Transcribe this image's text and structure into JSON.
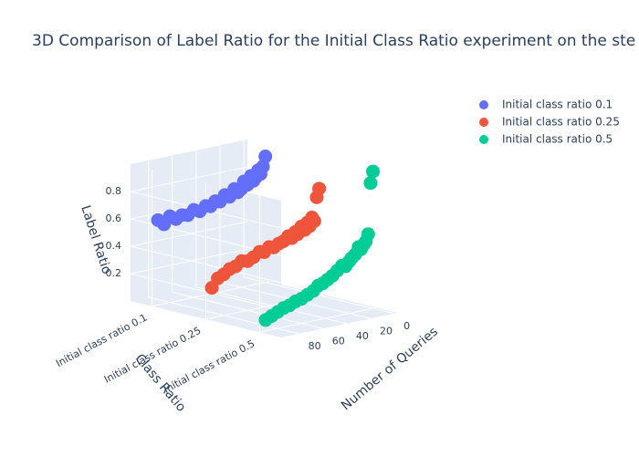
{
  "chart_data": {
    "type": "scatter3d",
    "title": "3D Comparison of Label Ratio for the Initial Class Ratio experiment on the ste",
    "xaxis_title": "Number of Queries",
    "yaxis_title": "Class Ratio",
    "zaxis_title": "Label Ratio",
    "categories": [
      "Initial class ratio 0.1",
      "Initial class ratio 0.25",
      "Initial class ratio 0.5"
    ],
    "xlim": [
      -3,
      95
    ],
    "xticks": [
      0,
      20,
      40,
      60,
      80
    ],
    "zlim": [
      0,
      1
    ],
    "zticks": [
      0.2,
      0.4,
      0.6,
      0.8
    ],
    "grid": true,
    "legend": "top-right",
    "series": [
      {
        "name": "Initial class ratio 0.1",
        "color": "#636efa",
        "y": [
          "Initial class ratio 0.1",
          "Initial class ratio 0.1",
          "Initial class ratio 0.1",
          "Initial class ratio 0.1",
          "Initial class ratio 0.1",
          "Initial class ratio 0.1",
          "Initial class ratio 0.1",
          "Initial class ratio 0.1",
          "Initial class ratio 0.1",
          "Initial class ratio 0.1",
          "Initial class ratio 0.1",
          "Initial class ratio 0.1",
          "Initial class ratio 0.1",
          "Initial class ratio 0.1",
          "Initial class ratio 0.1",
          "Initial class ratio 0.1",
          "Initial class ratio 0.1",
          "Initial class ratio 0.1",
          "Initial class ratio 0.1",
          "Initial class ratio 0.1",
          "Initial class ratio 0.1",
          "Initial class ratio 0.1",
          "Initial class ratio 0.1",
          "Initial class ratio 0.1",
          "Initial class ratio 0.1",
          "Initial class ratio 0.1"
        ],
        "x": [
          0,
          2,
          4,
          6,
          8,
          10,
          12,
          15,
          18,
          20,
          23,
          26,
          30,
          34,
          38,
          42,
          46,
          50,
          55,
          60,
          65,
          70,
          75,
          80,
          85,
          90
        ],
        "z": [
          0.92,
          0.85,
          0.8,
          0.83,
          0.78,
          0.76,
          0.8,
          0.74,
          0.77,
          0.72,
          0.7,
          0.73,
          0.68,
          0.7,
          0.66,
          0.67,
          0.64,
          0.65,
          0.62,
          0.64,
          0.61,
          0.62,
          0.6,
          0.63,
          0.58,
          0.62
        ]
      },
      {
        "name": "Initial class ratio 0.25",
        "color": "#ef553b",
        "y": [
          "Initial class ratio 0.25",
          "Initial class ratio 0.25",
          "Initial class ratio 0.25",
          "Initial class ratio 0.25",
          "Initial class ratio 0.25",
          "Initial class ratio 0.25",
          "Initial class ratio 0.25",
          "Initial class ratio 0.25",
          "Initial class ratio 0.25",
          "Initial class ratio 0.25",
          "Initial class ratio 0.25",
          "Initial class ratio 0.25",
          "Initial class ratio 0.25",
          "Initial class ratio 0.25",
          "Initial class ratio 0.25",
          "Initial class ratio 0.25",
          "Initial class ratio 0.25",
          "Initial class ratio 0.25",
          "Initial class ratio 0.25",
          "Initial class ratio 0.25",
          "Initial class ratio 0.25",
          "Initial class ratio 0.25",
          "Initial class ratio 0.25",
          "Initial class ratio 0.25",
          "Initial class ratio 0.25",
          "Initial class ratio 0.25"
        ],
        "x": [
          0,
          2,
          4,
          6,
          8,
          10,
          12,
          15,
          18,
          20,
          23,
          26,
          30,
          34,
          38,
          42,
          46,
          50,
          55,
          60,
          65,
          70,
          75,
          80,
          85,
          90
        ],
        "z": [
          0.78,
          0.72,
          0.55,
          0.58,
          0.52,
          0.55,
          0.5,
          0.53,
          0.48,
          0.5,
          0.46,
          0.48,
          0.45,
          0.44,
          0.42,
          0.43,
          0.4,
          0.41,
          0.38,
          0.36,
          0.37,
          0.34,
          0.33,
          0.3,
          0.28,
          0.22
        ]
      },
      {
        "name": "Initial class ratio 0.5",
        "color": "#00cc96",
        "y": [
          "Initial class ratio 0.5",
          "Initial class ratio 0.5",
          "Initial class ratio 0.5",
          "Initial class ratio 0.5",
          "Initial class ratio 0.5",
          "Initial class ratio 0.5",
          "Initial class ratio 0.5",
          "Initial class ratio 0.5",
          "Initial class ratio 0.5",
          "Initial class ratio 0.5",
          "Initial class ratio 0.5",
          "Initial class ratio 0.5",
          "Initial class ratio 0.5",
          "Initial class ratio 0.5",
          "Initial class ratio 0.5",
          "Initial class ratio 0.5",
          "Initial class ratio 0.5",
          "Initial class ratio 0.5",
          "Initial class ratio 0.5",
          "Initial class ratio 0.5",
          "Initial class ratio 0.5",
          "Initial class ratio 0.5",
          "Initial class ratio 0.5",
          "Initial class ratio 0.5",
          "Initial class ratio 0.5",
          "Initial class ratio 0.5"
        ],
        "x": [
          0,
          2,
          4,
          6,
          8,
          10,
          12,
          15,
          18,
          20,
          23,
          26,
          30,
          34,
          38,
          42,
          46,
          50,
          55,
          60,
          65,
          70,
          75,
          80,
          85,
          90
        ],
        "z": [
          1.0,
          0.92,
          0.55,
          0.5,
          0.48,
          0.45,
          0.47,
          0.42,
          0.4,
          0.38,
          0.35,
          0.36,
          0.33,
          0.3,
          0.28,
          0.26,
          0.25,
          0.22,
          0.2,
          0.18,
          0.17,
          0.15,
          0.14,
          0.12,
          0.1,
          0.08
        ]
      }
    ]
  }
}
